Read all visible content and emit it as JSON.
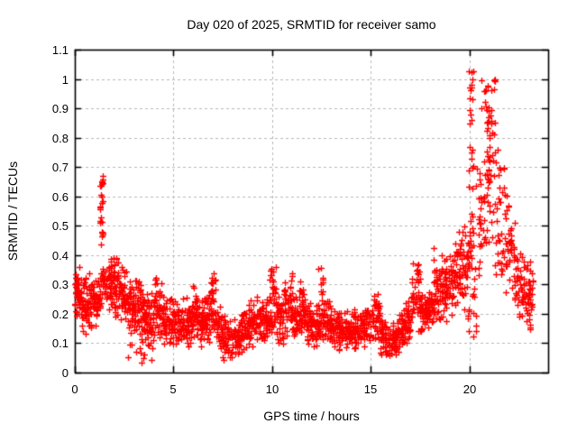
{
  "figure": {
    "title": "Day 020 of 2025, SRMTID for receiver samo",
    "xlabel": "GPS time / hours",
    "ylabel": "SRMTID / TECUs"
  },
  "chart_data": {
    "type": "scatter",
    "title": "Day 020 of 2025, SRMTID for receiver samo",
    "xlabel": "GPS time / hours",
    "ylabel": "SRMTID / TECUs",
    "marker": "plus",
    "marker_color": "#ff0000",
    "background_color": "#ffffff",
    "border_color": "#000000",
    "grid": {
      "show": true,
      "style": "dashed",
      "color": "#b9b9b9"
    },
    "legend": "none",
    "axes": {
      "x": {
        "label": "GPS time / hours",
        "range": [
          0,
          24
        ],
        "ticks": [
          0,
          5,
          10,
          15,
          20
        ],
        "tick_labels": [
          "0",
          "5",
          "10",
          "15",
          "20"
        ]
      },
      "y": {
        "label": "SRMTID / TECUs",
        "range": [
          0,
          1.1
        ],
        "ticks": [
          0,
          0.1,
          0.2,
          0.3,
          0.4,
          0.5,
          0.6,
          0.7,
          0.8,
          0.9,
          1.0,
          1.1
        ],
        "tick_labels": [
          "0",
          "0.1",
          "0.2",
          "0.3",
          "0.4",
          "0.5",
          "0.6",
          "0.7",
          "0.8",
          "0.9",
          "1",
          "1.1"
        ]
      }
    },
    "series": [
      {
        "name": "SRMTID",
        "color": "#ff0000",
        "data_start_hour": 0.0,
        "data_end_hour": 23.25,
        "peak_value": 1.03,
        "peak_hour": 20.1,
        "min_value": 0.03,
        "segment_format": [
          "t_start_h",
          "t_end_h",
          "n_points",
          "y_min",
          "y_max",
          "distribution t=triangular u=uniform"
        ],
        "segments": [
          [
            0.0,
            0.3,
            40,
            0.17,
            0.37,
            "t"
          ],
          [
            0.3,
            0.65,
            40,
            0.12,
            0.34,
            "t"
          ],
          [
            0.65,
            1.0,
            40,
            0.14,
            0.35,
            "t"
          ],
          [
            1.0,
            1.3,
            34,
            0.15,
            0.33,
            "t"
          ],
          [
            1.28,
            1.45,
            20,
            0.3,
            0.67,
            "u"
          ],
          [
            1.3,
            1.42,
            8,
            0.6,
            0.67,
            "u"
          ],
          [
            1.3,
            1.6,
            28,
            0.2,
            0.4,
            "t"
          ],
          [
            1.6,
            2.0,
            42,
            0.2,
            0.41,
            "t"
          ],
          [
            2.0,
            2.3,
            34,
            0.17,
            0.4,
            "t"
          ],
          [
            2.3,
            2.6,
            34,
            0.15,
            0.37,
            "t"
          ],
          [
            2.6,
            3.0,
            40,
            0.12,
            0.33,
            "t"
          ],
          [
            3.0,
            3.35,
            38,
            0.12,
            0.33,
            "t"
          ],
          [
            3.35,
            3.7,
            38,
            0.08,
            0.3,
            "t"
          ],
          [
            3.7,
            4.05,
            38,
            0.08,
            0.3,
            "t"
          ],
          [
            2.6,
            4.3,
            12,
            0.03,
            0.1,
            "u"
          ],
          [
            4.05,
            4.45,
            40,
            0.1,
            0.34,
            "t"
          ],
          [
            4.45,
            4.8,
            38,
            0.08,
            0.28,
            "t"
          ],
          [
            4.8,
            5.15,
            38,
            0.07,
            0.26,
            "t"
          ],
          [
            5.15,
            5.5,
            38,
            0.09,
            0.27,
            "t"
          ],
          [
            5.5,
            5.85,
            38,
            0.08,
            0.26,
            "t"
          ],
          [
            5.85,
            6.2,
            38,
            0.1,
            0.31,
            "t"
          ],
          [
            6.2,
            6.55,
            38,
            0.08,
            0.26,
            "t"
          ],
          [
            6.55,
            6.9,
            38,
            0.09,
            0.29,
            "t"
          ],
          [
            6.88,
            7.15,
            30,
            0.14,
            0.34,
            "u"
          ],
          [
            7.15,
            7.5,
            36,
            0.07,
            0.24,
            "t"
          ],
          [
            7.5,
            7.95,
            44,
            0.03,
            0.2,
            "t"
          ],
          [
            7.95,
            8.4,
            44,
            0.04,
            0.2,
            "t"
          ],
          [
            8.4,
            8.8,
            42,
            0.06,
            0.22,
            "t"
          ],
          [
            8.8,
            9.2,
            42,
            0.08,
            0.25,
            "t"
          ],
          [
            9.2,
            9.6,
            42,
            0.08,
            0.27,
            "t"
          ],
          [
            9.6,
            9.9,
            32,
            0.08,
            0.26,
            "t"
          ],
          [
            9.88,
            10.2,
            36,
            0.12,
            0.37,
            "u"
          ],
          [
            10.2,
            10.6,
            40,
            0.09,
            0.27,
            "t"
          ],
          [
            10.6,
            11.05,
            44,
            0.11,
            0.36,
            "t"
          ],
          [
            11.05,
            11.4,
            36,
            0.09,
            0.28,
            "t"
          ],
          [
            11.4,
            11.7,
            32,
            0.1,
            0.33,
            "t"
          ],
          [
            11.7,
            12.05,
            36,
            0.09,
            0.26,
            "t"
          ],
          [
            12.05,
            12.35,
            32,
            0.08,
            0.24,
            "t"
          ],
          [
            12.35,
            12.6,
            28,
            0.1,
            0.37,
            "u"
          ],
          [
            12.6,
            13.0,
            40,
            0.09,
            0.27,
            "t"
          ],
          [
            13.0,
            13.4,
            40,
            0.07,
            0.23,
            "t"
          ],
          [
            13.4,
            13.8,
            40,
            0.07,
            0.22,
            "t"
          ],
          [
            13.8,
            14.2,
            40,
            0.06,
            0.22,
            "t"
          ],
          [
            14.2,
            14.6,
            40,
            0.07,
            0.22,
            "t"
          ],
          [
            14.6,
            15.0,
            40,
            0.08,
            0.24,
            "t"
          ],
          [
            15.0,
            15.45,
            42,
            0.09,
            0.28,
            "t"
          ],
          [
            15.45,
            15.8,
            36,
            0.05,
            0.2,
            "t"
          ],
          [
            15.8,
            16.3,
            44,
            0.04,
            0.18,
            "t"
          ],
          [
            16.3,
            16.7,
            40,
            0.06,
            0.22,
            "t"
          ],
          [
            16.7,
            17.05,
            38,
            0.09,
            0.26,
            "t"
          ],
          [
            17.05,
            17.5,
            42,
            0.12,
            0.4,
            "t"
          ],
          [
            17.5,
            17.85,
            36,
            0.12,
            0.3,
            "t"
          ],
          [
            17.85,
            18.2,
            36,
            0.13,
            0.31,
            "t"
          ],
          [
            18.2,
            18.6,
            40,
            0.15,
            0.44,
            "t"
          ],
          [
            18.6,
            19.0,
            40,
            0.16,
            0.42,
            "t"
          ],
          [
            19.0,
            19.4,
            40,
            0.18,
            0.47,
            "t"
          ],
          [
            19.4,
            19.8,
            36,
            0.2,
            0.52,
            "t"
          ],
          [
            19.8,
            20.0,
            18,
            0.25,
            0.55,
            "t"
          ],
          [
            19.97,
            20.22,
            30,
            0.35,
            1.03,
            "u"
          ],
          [
            20.0,
            20.18,
            8,
            0.88,
            1.03,
            "u"
          ],
          [
            19.9,
            20.5,
            14,
            0.12,
            0.3,
            "u"
          ],
          [
            20.22,
            20.6,
            22,
            0.3,
            0.72,
            "u"
          ],
          [
            20.6,
            21.3,
            50,
            0.35,
            1.0,
            "u"
          ],
          [
            20.85,
            21.15,
            22,
            0.55,
            1.0,
            "u"
          ],
          [
            21.3,
            21.8,
            38,
            0.33,
            0.8,
            "u"
          ],
          [
            21.8,
            22.3,
            38,
            0.25,
            0.62,
            "t"
          ],
          [
            22.3,
            22.8,
            42,
            0.17,
            0.45,
            "t"
          ],
          [
            22.8,
            23.25,
            40,
            0.12,
            0.42,
            "t"
          ]
        ]
      }
    ]
  }
}
